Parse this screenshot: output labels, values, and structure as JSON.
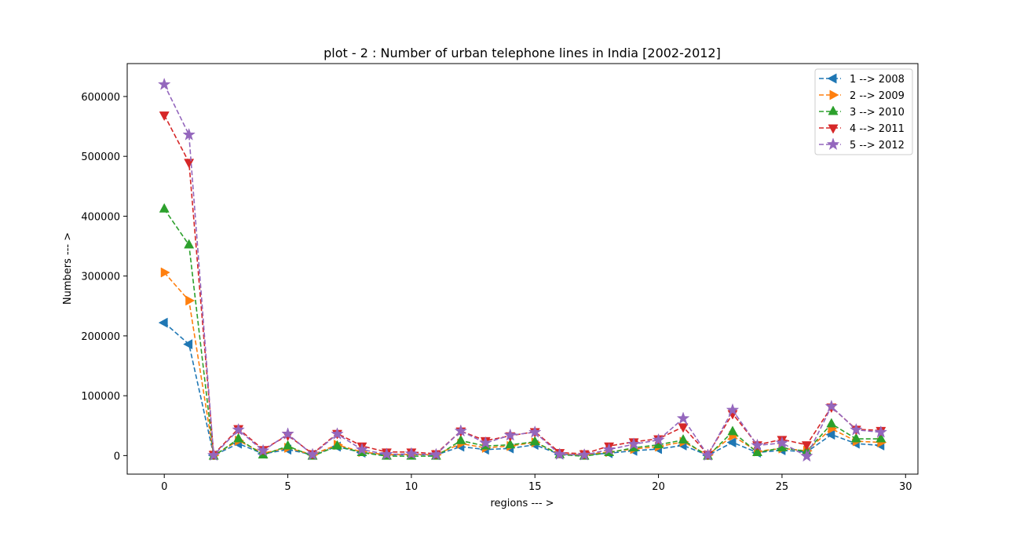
{
  "chart_data": {
    "type": "line",
    "title": "plot - 2 : Number of urban telephone lines in India [2002-2012]",
    "xlabel": "regions --- >",
    "ylabel": "Numbers --- >",
    "xlim": [
      -1.5,
      30.5
    ],
    "ylim": [
      -31000,
      655000
    ],
    "xticks": [
      0,
      5,
      10,
      15,
      20,
      25,
      30
    ],
    "yticks": [
      0,
      100000,
      200000,
      300000,
      400000,
      500000,
      600000
    ],
    "grid": false,
    "legend_placement": "top-right",
    "series": [
      {
        "name": "1 --> 2008",
        "color": "#1f77b4",
        "marker": "triangle-left",
        "x": [
          0,
          1,
          2,
          3,
          4,
          5,
          6,
          7,
          8,
          9,
          10,
          11,
          12,
          13,
          14,
          15,
          16,
          17,
          18,
          19,
          20,
          21,
          22,
          23,
          24,
          25,
          26,
          27,
          28,
          29
        ],
        "values": [
          222000,
          186000,
          500,
          20000,
          3000,
          10000,
          1500,
          15000,
          5000,
          1000,
          1500,
          1000,
          15000,
          10000,
          12000,
          18000,
          2000,
          1000,
          4000,
          8000,
          11000,
          17000,
          500,
          22000,
          5000,
          9000,
          6000,
          35000,
          20000,
          17000
        ]
      },
      {
        "name": "2 --> 2009",
        "color": "#ff7f0e",
        "marker": "triangle-right",
        "x": [
          0,
          1,
          2,
          3,
          4,
          5,
          6,
          7,
          8,
          9,
          10,
          11,
          12,
          13,
          14,
          15,
          16,
          17,
          18,
          19,
          20,
          21,
          22,
          23,
          24,
          25,
          26,
          27,
          28,
          29
        ],
        "values": [
          306000,
          259000,
          500,
          25000,
          4000,
          13000,
          1500,
          18000,
          6000,
          1500,
          2000,
          1500,
          20000,
          13000,
          16000,
          22000,
          2500,
          1500,
          6000,
          11000,
          15000,
          23000,
          1000,
          33000,
          7000,
          12000,
          8000,
          45000,
          24000,
          22000
        ]
      },
      {
        "name": "3 --> 2010",
        "color": "#2ca02c",
        "marker": "triangle-up",
        "x": [
          0,
          1,
          2,
          3,
          4,
          5,
          6,
          7,
          8,
          9,
          10,
          11,
          12,
          13,
          14,
          15,
          16,
          17,
          18,
          19,
          20,
          21,
          22,
          23,
          24,
          25,
          26,
          27,
          28,
          29
        ],
        "values": [
          412000,
          352000,
          -1000,
          28000,
          1000,
          16000,
          -1000,
          16000,
          5000,
          -1000,
          -1000,
          -1000,
          25000,
          16000,
          18000,
          23000,
          1500,
          -1000,
          5000,
          13000,
          18000,
          26000,
          -1000,
          40000,
          5000,
          13000,
          7000,
          53000,
          28000,
          28000
        ]
      },
      {
        "name": "4 --> 2011",
        "color": "#d62728",
        "marker": "triangle-down",
        "x": [
          0,
          1,
          2,
          3,
          4,
          5,
          6,
          7,
          8,
          9,
          10,
          11,
          12,
          13,
          14,
          15,
          16,
          17,
          18,
          19,
          20,
          21,
          22,
          23,
          24,
          25,
          26,
          27,
          28,
          29
        ],
        "values": [
          569000,
          490000,
          2000,
          45000,
          10000,
          34000,
          3000,
          37000,
          16000,
          6000,
          6000,
          3000,
          41000,
          25000,
          33000,
          40000,
          5000,
          3000,
          16000,
          23000,
          28000,
          48000,
          2000,
          70000,
          18000,
          27000,
          18000,
          81000,
          44000,
          42000
        ]
      },
      {
        "name": "5 --> 2012",
        "color": "#9467bd",
        "marker": "star",
        "x": [
          0,
          1,
          2,
          3,
          4,
          5,
          6,
          7,
          8,
          9,
          10,
          11,
          12,
          13,
          14,
          15,
          16,
          17,
          18,
          19,
          20,
          21,
          22,
          23,
          24,
          25,
          26,
          27,
          28,
          29
        ],
        "values": [
          620000,
          536000,
          500,
          43000,
          8000,
          36000,
          1500,
          36000,
          10000,
          2000,
          3000,
          1500,
          41000,
          21000,
          34000,
          39000,
          2000,
          1000,
          10000,
          19000,
          26000,
          62000,
          500,
          76000,
          17000,
          21000,
          -1000,
          82000,
          43000,
          39000
        ]
      }
    ]
  }
}
